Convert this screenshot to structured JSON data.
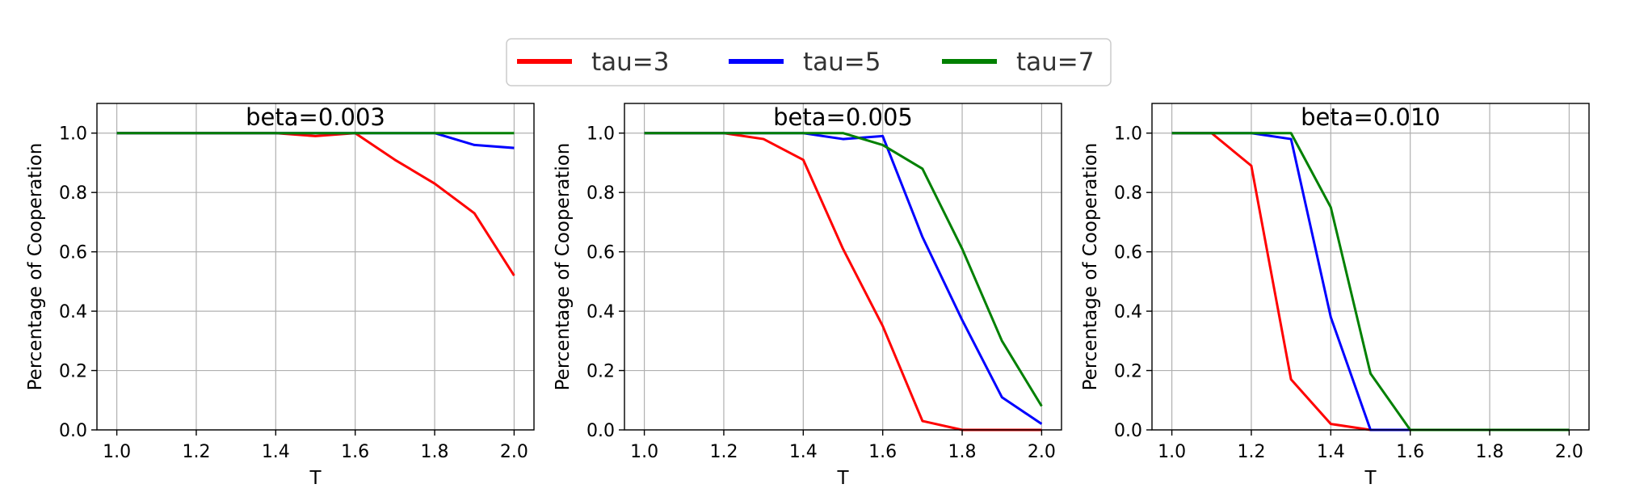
{
  "legend": {
    "location": "top-center",
    "entries": [
      {
        "label": "tau=3",
        "color": "#ff0000"
      },
      {
        "label": "tau=5",
        "color": "#0000ff"
      },
      {
        "label": "tau=7",
        "color": "#008000"
      }
    ]
  },
  "chart_data": [
    {
      "type": "line",
      "title": "beta=0.003",
      "xlabel": "T",
      "ylabel": "Percentage of Cooperation",
      "x": [
        1.0,
        1.1,
        1.2,
        1.3,
        1.4,
        1.5,
        1.6,
        1.7,
        1.8,
        1.9,
        2.0
      ],
      "xlim": [
        0.95,
        2.05
      ],
      "ylim": [
        0.0,
        1.1
      ],
      "xticks": [
        1.0,
        1.2,
        1.4,
        1.6,
        1.8,
        2.0
      ],
      "xtick_labels": [
        "1.0",
        "1.2",
        "1.4",
        "1.6",
        "1.8",
        "2.0"
      ],
      "yticks": [
        0.0,
        0.2,
        0.4,
        0.6,
        0.8,
        1.0
      ],
      "ytick_labels": [
        "0.0",
        "0.2",
        "0.4",
        "0.6",
        "0.8",
        "1.0"
      ],
      "grid": true,
      "series": [
        {
          "name": "tau=3",
          "color": "#ff0000",
          "values": [
            1.0,
            1.0,
            1.0,
            1.0,
            1.0,
            0.99,
            1.0,
            0.91,
            0.83,
            0.73,
            0.52
          ]
        },
        {
          "name": "tau=5",
          "color": "#0000ff",
          "values": [
            1.0,
            1.0,
            1.0,
            1.0,
            1.0,
            1.0,
            1.0,
            1.0,
            1.0,
            0.96,
            0.95
          ]
        },
        {
          "name": "tau=7",
          "color": "#008000",
          "values": [
            1.0,
            1.0,
            1.0,
            1.0,
            1.0,
            1.0,
            1.0,
            1.0,
            1.0,
            1.0,
            1.0
          ]
        }
      ]
    },
    {
      "type": "line",
      "title": "beta=0.005",
      "xlabel": "T",
      "ylabel": "Percentage of Cooperation",
      "x": [
        1.0,
        1.1,
        1.2,
        1.3,
        1.4,
        1.5,
        1.6,
        1.7,
        1.8,
        1.9,
        2.0
      ],
      "xlim": [
        0.95,
        2.05
      ],
      "ylim": [
        0.0,
        1.1
      ],
      "xticks": [
        1.0,
        1.2,
        1.4,
        1.6,
        1.8,
        2.0
      ],
      "xtick_labels": [
        "1.0",
        "1.2",
        "1.4",
        "1.6",
        "1.8",
        "2.0"
      ],
      "yticks": [
        0.0,
        0.2,
        0.4,
        0.6,
        0.8,
        1.0
      ],
      "ytick_labels": [
        "0.0",
        "0.2",
        "0.4",
        "0.6",
        "0.8",
        "1.0"
      ],
      "grid": true,
      "series": [
        {
          "name": "tau=3",
          "color": "#ff0000",
          "values": [
            1.0,
            1.0,
            1.0,
            0.98,
            0.91,
            0.61,
            0.35,
            0.03,
            0.0,
            0.0,
            0.0
          ]
        },
        {
          "name": "tau=5",
          "color": "#0000ff",
          "values": [
            1.0,
            1.0,
            1.0,
            1.0,
            1.0,
            0.98,
            0.99,
            0.65,
            0.37,
            0.11,
            0.02
          ]
        },
        {
          "name": "tau=7",
          "color": "#008000",
          "values": [
            1.0,
            1.0,
            1.0,
            1.0,
            1.0,
            1.0,
            0.96,
            0.88,
            0.61,
            0.3,
            0.08
          ]
        }
      ]
    },
    {
      "type": "line",
      "title": "beta=0.010",
      "xlabel": "T",
      "ylabel": "Percentage of Cooperation",
      "x": [
        1.0,
        1.1,
        1.2,
        1.3,
        1.4,
        1.5,
        1.6,
        1.7,
        1.8,
        1.9,
        2.0
      ],
      "xlim": [
        0.95,
        2.05
      ],
      "ylim": [
        0.0,
        1.1
      ],
      "xticks": [
        1.0,
        1.2,
        1.4,
        1.6,
        1.8,
        2.0
      ],
      "xtick_labels": [
        "1.0",
        "1.2",
        "1.4",
        "1.6",
        "1.8",
        "2.0"
      ],
      "yticks": [
        0.0,
        0.2,
        0.4,
        0.6,
        0.8,
        1.0
      ],
      "ytick_labels": [
        "0.0",
        "0.2",
        "0.4",
        "0.6",
        "0.8",
        "1.0"
      ],
      "grid": true,
      "series": [
        {
          "name": "tau=3",
          "color": "#ff0000",
          "values": [
            1.0,
            1.0,
            0.89,
            0.17,
            0.02,
            0.0,
            0.0,
            0.0,
            0.0,
            0.0,
            0.0
          ]
        },
        {
          "name": "tau=5",
          "color": "#0000ff",
          "values": [
            1.0,
            1.0,
            1.0,
            0.98,
            0.38,
            0.0,
            0.0,
            0.0,
            0.0,
            0.0,
            0.0
          ]
        },
        {
          "name": "tau=7",
          "color": "#008000",
          "values": [
            1.0,
            1.0,
            1.0,
            1.0,
            0.75,
            0.19,
            0.0,
            0.0,
            0.0,
            0.0,
            0.0
          ]
        }
      ]
    }
  ]
}
